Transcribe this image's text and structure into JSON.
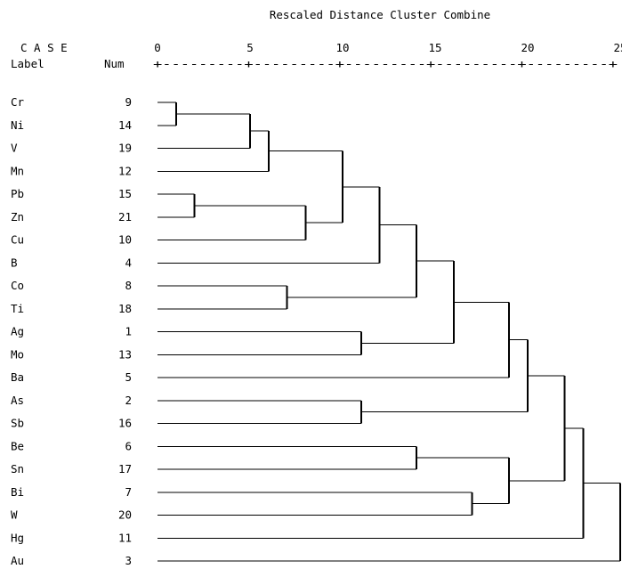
{
  "title": "Rescaled Distance Cluster Combine",
  "header": {
    "case": "C A S E",
    "label": "Label",
    "num": "Num"
  },
  "scale": {
    "ticks": [
      "0",
      "5",
      "10",
      "15",
      "20",
      "25"
    ],
    "ruler": "+---------+---------+---------+---------+---------+"
  },
  "cases": [
    {
      "label": "Cr",
      "num": "9"
    },
    {
      "label": "Ni",
      "num": "14"
    },
    {
      "label": "V",
      "num": "19"
    },
    {
      "label": "Mn",
      "num": "12"
    },
    {
      "label": "Pb",
      "num": "15"
    },
    {
      "label": "Zn",
      "num": "21"
    },
    {
      "label": "Cu",
      "num": "10"
    },
    {
      "label": "B",
      "num": "4"
    },
    {
      "label": "Co",
      "num": "8"
    },
    {
      "label": "Ti",
      "num": "18"
    },
    {
      "label": "Ag",
      "num": "1"
    },
    {
      "label": "Mo",
      "num": "13"
    },
    {
      "label": "Ba",
      "num": "5"
    },
    {
      "label": "As",
      "num": "2"
    },
    {
      "label": "Sb",
      "num": "16"
    },
    {
      "label": "Be",
      "num": "6"
    },
    {
      "label": "Sn",
      "num": "17"
    },
    {
      "label": "Bi",
      "num": "7"
    },
    {
      "label": "W",
      "num": "20"
    },
    {
      "label": "Hg",
      "num": "11"
    },
    {
      "label": "Au",
      "num": "3"
    }
  ],
  "merges": [
    {
      "a": "Cr",
      "b": "Ni",
      "distance": 1.0
    },
    {
      "a": "Pb",
      "b": "Zn",
      "distance": 2.0
    },
    {
      "a": "Cr-Ni",
      "b": "V",
      "distance": 5.0
    },
    {
      "a": "Cr-Ni-V",
      "b": "Mn",
      "distance": 6.0
    },
    {
      "a": "Co",
      "b": "Ti",
      "distance": 7.0
    },
    {
      "a": "Pb-Zn",
      "b": "Cu",
      "distance": 8.0
    },
    {
      "a": "Cr-Ni-V-Mn",
      "b": "Pb-Zn-Cu",
      "distance": 10.0
    },
    {
      "a": "Ag",
      "b": "Mo",
      "distance": 11.0
    },
    {
      "a": "As",
      "b": "Sb",
      "distance": 11.0
    },
    {
      "a": "Cr..Cu",
      "b": "B",
      "distance": 12.0
    },
    {
      "a": "Cr..B",
      "b": "Co-Ti",
      "distance": 14.0
    },
    {
      "a": "Be",
      "b": "Sn",
      "distance": 14.0
    },
    {
      "a": "Cr..Ti",
      "b": "Ag-Mo",
      "distance": 16.0
    },
    {
      "a": "Bi",
      "b": "W",
      "distance": 17.0
    },
    {
      "a": "Cr..Mo",
      "b": "Ba",
      "distance": 19.0
    },
    {
      "a": "Be-Sn",
      "b": "Bi-W",
      "distance": 19.0
    },
    {
      "a": "Cr..Ba",
      "b": "As-Sb",
      "distance": 20.0
    },
    {
      "a": "Cr..Sb",
      "b": "Be..W",
      "distance": 22.0
    },
    {
      "a": "Cr..W",
      "b": "Hg",
      "distance": 23.0
    },
    {
      "a": "Cr..Hg",
      "b": "Au",
      "distance": 25.0
    }
  ]
}
